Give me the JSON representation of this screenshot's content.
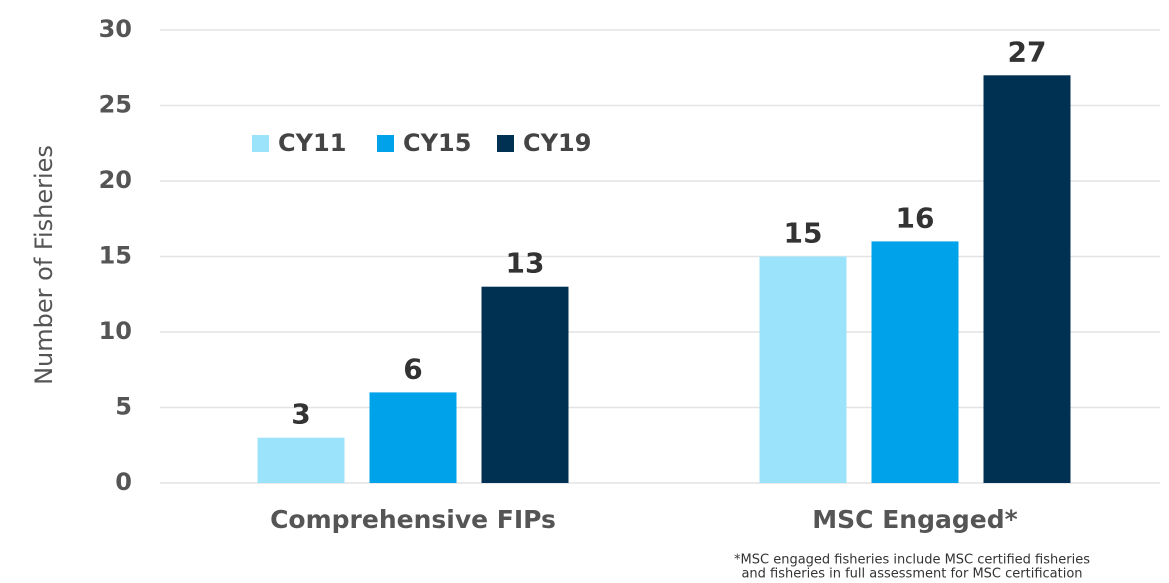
{
  "chart_data": {
    "type": "bar",
    "y_label": "Number of Fisheries",
    "categories": [
      "Comprehensive FIPs",
      "MSC Engaged*"
    ],
    "series": [
      {
        "name": "CY11",
        "color": "#9be3fb",
        "values": [
          3,
          15
        ]
      },
      {
        "name": "CY15",
        "color": "#00a3ea",
        "values": [
          6,
          16
        ]
      },
      {
        "name": "CY19",
        "color": "#003152",
        "values": [
          13,
          27
        ]
      }
    ],
    "ylim": [
      0,
      30
    ],
    "yticks": [
      0,
      5,
      10,
      15,
      20,
      25,
      30
    ],
    "grid": true,
    "legend": "top-left",
    "footnote": [
      "*MSC engaged fisheries include MSC certified fisheries",
      "and fisheries in full assessment for MSC certification"
    ]
  }
}
